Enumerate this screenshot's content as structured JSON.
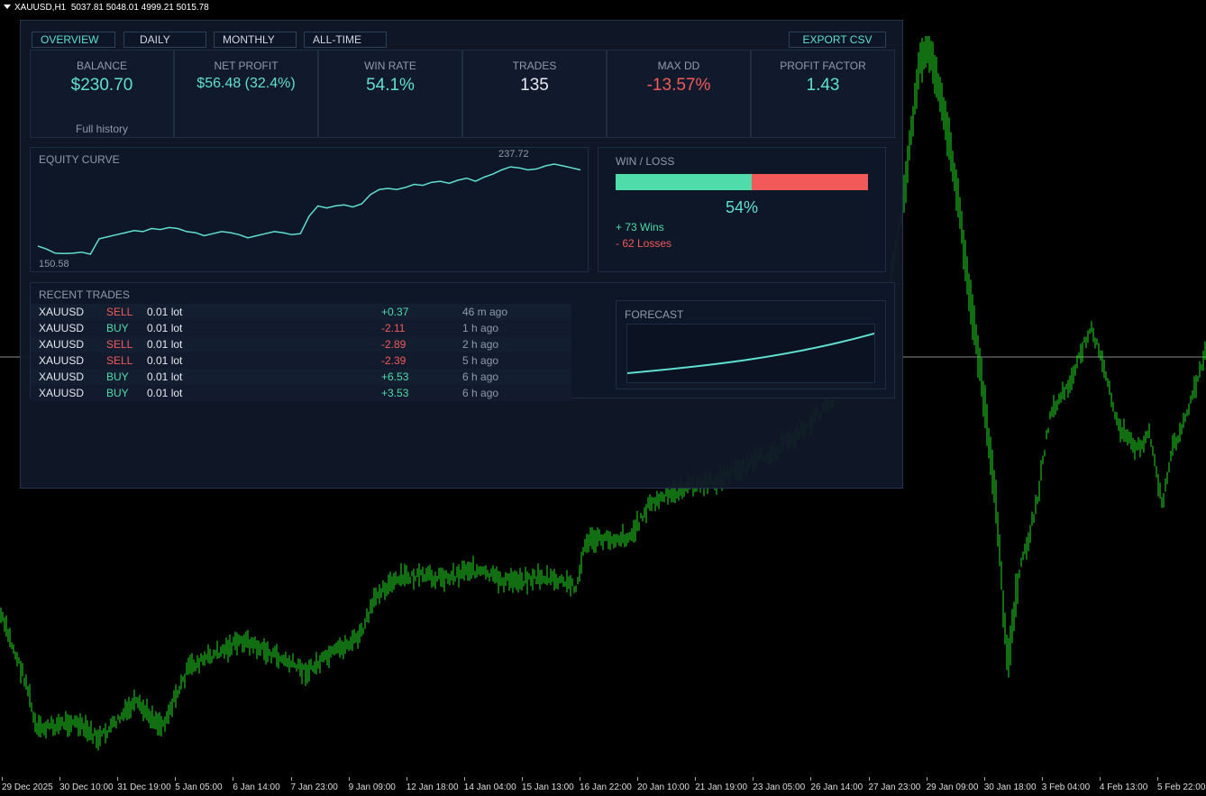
{
  "window": {
    "symbol": "XAUUSD,H1",
    "ohlc": "5037.81 5048.01 4999.21 5015.78"
  },
  "time_axis": [
    "29 Dec 2025",
    "30 Dec 10:00",
    "31 Dec 19:00",
    "5 Jan 05:00",
    "6 Jan 14:00",
    "7 Jan 23:00",
    "9 Jan 09:00",
    "12 Jan 18:00",
    "14 Jan 04:00",
    "15 Jan 13:00",
    "16 Jan 22:00",
    "20 Jan 10:00",
    "21 Jan 19:00",
    "23 Jan 05:00",
    "26 Jan 14:00",
    "27 Jan 23:00",
    "29 Jan 09:00",
    "30 Jan 18:00",
    "3 Feb 04:00",
    "4 Feb 13:00",
    "5 Feb 22:00"
  ],
  "colors": {
    "candle": "#22dd22",
    "accent": "#5fe0d0",
    "positive": "#4fdcaa",
    "negative": "#f25a5a",
    "panel": "#101828"
  },
  "tabs": {
    "overview": "OVERVIEW",
    "daily": "DAILY",
    "monthly": "MONTHLY",
    "alltime": "ALL-TIME",
    "export": "EXPORT CSV"
  },
  "stats": {
    "balance": {
      "label": "BALANCE",
      "value": "$230.70",
      "foot": "Full history"
    },
    "net_profit": {
      "label": "NET PROFIT",
      "value": "$56.48 (32.4%)"
    },
    "win_rate": {
      "label": "WIN RATE",
      "value": "54.1%"
    },
    "trades": {
      "label": "TRADES",
      "value": "135"
    },
    "max_dd": {
      "label": "MAX DD",
      "value": "-13.57%"
    },
    "profit_factor": {
      "label": "PROFIT FACTOR",
      "value": "1.43"
    }
  },
  "equity": {
    "title": "EQUITY CURVE",
    "max_label": "237.72",
    "min_label": "150.58",
    "values": [
      158,
      155,
      151,
      150.58,
      151,
      152,
      150,
      165,
      167,
      169,
      171,
      173,
      172,
      175,
      174,
      176,
      175,
      172,
      171,
      168,
      170,
      172,
      171,
      169,
      166,
      168,
      170,
      172,
      171,
      169,
      170,
      187,
      197,
      195,
      197,
      198,
      196,
      199,
      208,
      213,
      214,
      213,
      215,
      218,
      217,
      220,
      221,
      219,
      222,
      224,
      221,
      225,
      228,
      232,
      235,
      234,
      232,
      233,
      236,
      237.72,
      236,
      234,
      232
    ]
  },
  "win_loss": {
    "title": "WIN / LOSS",
    "win_fraction": 0.54,
    "percent": "54%",
    "wins": "+ 73 Wins",
    "losses": "- 62 Losses"
  },
  "recent_trades": {
    "title": "RECENT TRADES",
    "rows": [
      {
        "symbol": "XAUUSD",
        "side": "SELL",
        "lot": "0.01 lot",
        "pl": "+0.37",
        "time": "46 m ago"
      },
      {
        "symbol": "XAUUSD",
        "side": "BUY",
        "lot": "0.01 lot",
        "pl": "-2.11",
        "time": "1 h ago"
      },
      {
        "symbol": "XAUUSD",
        "side": "SELL",
        "lot": "0.01 lot",
        "pl": "-2.89",
        "time": "2 h ago"
      },
      {
        "symbol": "XAUUSD",
        "side": "SELL",
        "lot": "0.01 lot",
        "pl": "-2.39",
        "time": "5 h ago"
      },
      {
        "symbol": "XAUUSD",
        "side": "BUY",
        "lot": "0.01 lot",
        "pl": "+6.53",
        "time": "6 h ago"
      },
      {
        "symbol": "XAUUSD",
        "side": "BUY",
        "lot": "0.01 lot",
        "pl": "+3.53",
        "time": "6 h ago"
      }
    ]
  },
  "forecast": {
    "title": "FORECAST"
  }
}
